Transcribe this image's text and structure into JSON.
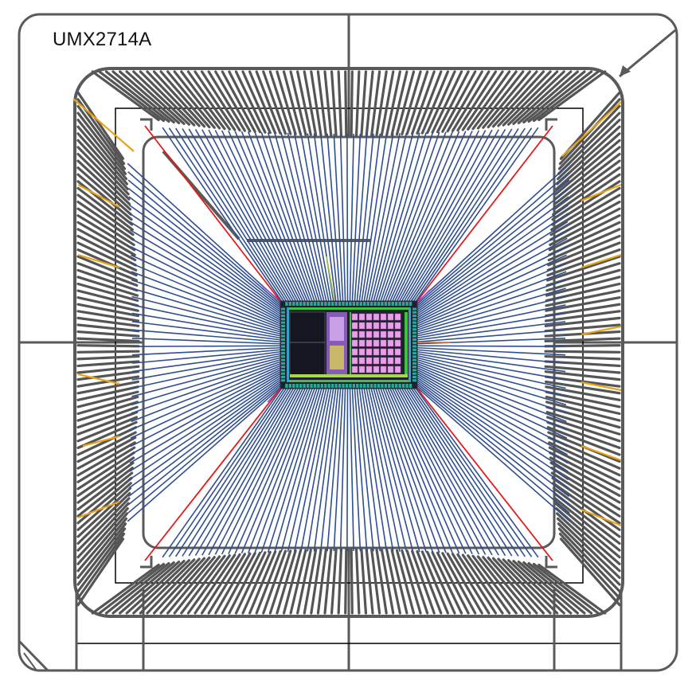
{
  "title": "UMX2714A",
  "colors": {
    "background": "#ffffff",
    "frame": "#5a5a5a",
    "leadfinger": "#555555",
    "bondwire": "#2f4f8f",
    "tiebar": "#e01c1c",
    "fused_lead": "#e8a317",
    "die_dark": "#1d1d2b",
    "die_pad": "#2aa89a",
    "die_green": "#3cc43c",
    "die_purple": "#9966cc",
    "die_pink": "#e8a0e8",
    "die_yellow": "#e6e04a",
    "outline": "#000000"
  },
  "leadframe": {
    "leads_per_side": 76,
    "sides": [
      "top",
      "right",
      "bottom",
      "left"
    ]
  },
  "die": {
    "bond_pads_long_side": 36,
    "bond_pads_short_side": 22
  }
}
